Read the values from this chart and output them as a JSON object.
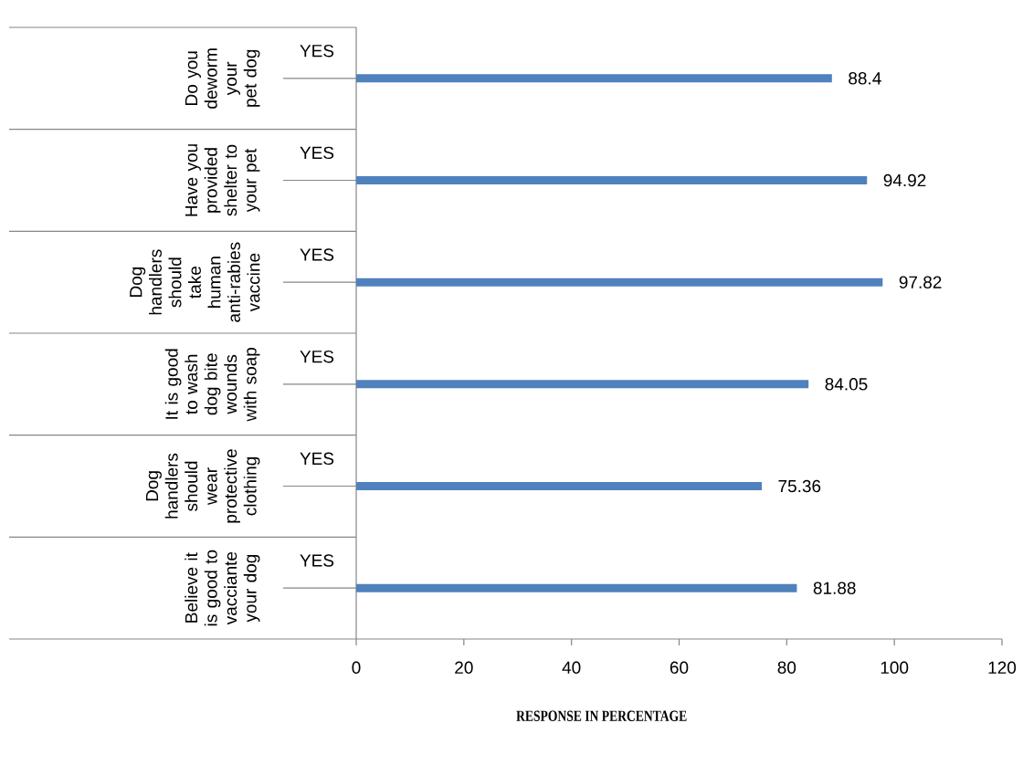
{
  "chart_data": {
    "type": "bar",
    "orientation": "horizontal",
    "categories": [
      "Do you deworm your pet dog",
      "Have you provided shelter to your pet",
      "Dog handlers should take human anti-rabies vaccine",
      "It is good to wash dog bite wounds with soap",
      "Dog handlers should wear protective clothing",
      "Believe it is good to vacciante your dog"
    ],
    "series": [
      {
        "name": "YES",
        "color": "#4f81bd",
        "values": [
          88.4,
          94.92,
          97.82,
          84.05,
          75.36,
          81.88
        ]
      }
    ],
    "xlim": [
      0,
      120
    ],
    "xticks": [
      0,
      20,
      40,
      60,
      80,
      100,
      120
    ],
    "xlabel": "RESPONSE IN PERCENTAGE",
    "data_labels": true
  }
}
